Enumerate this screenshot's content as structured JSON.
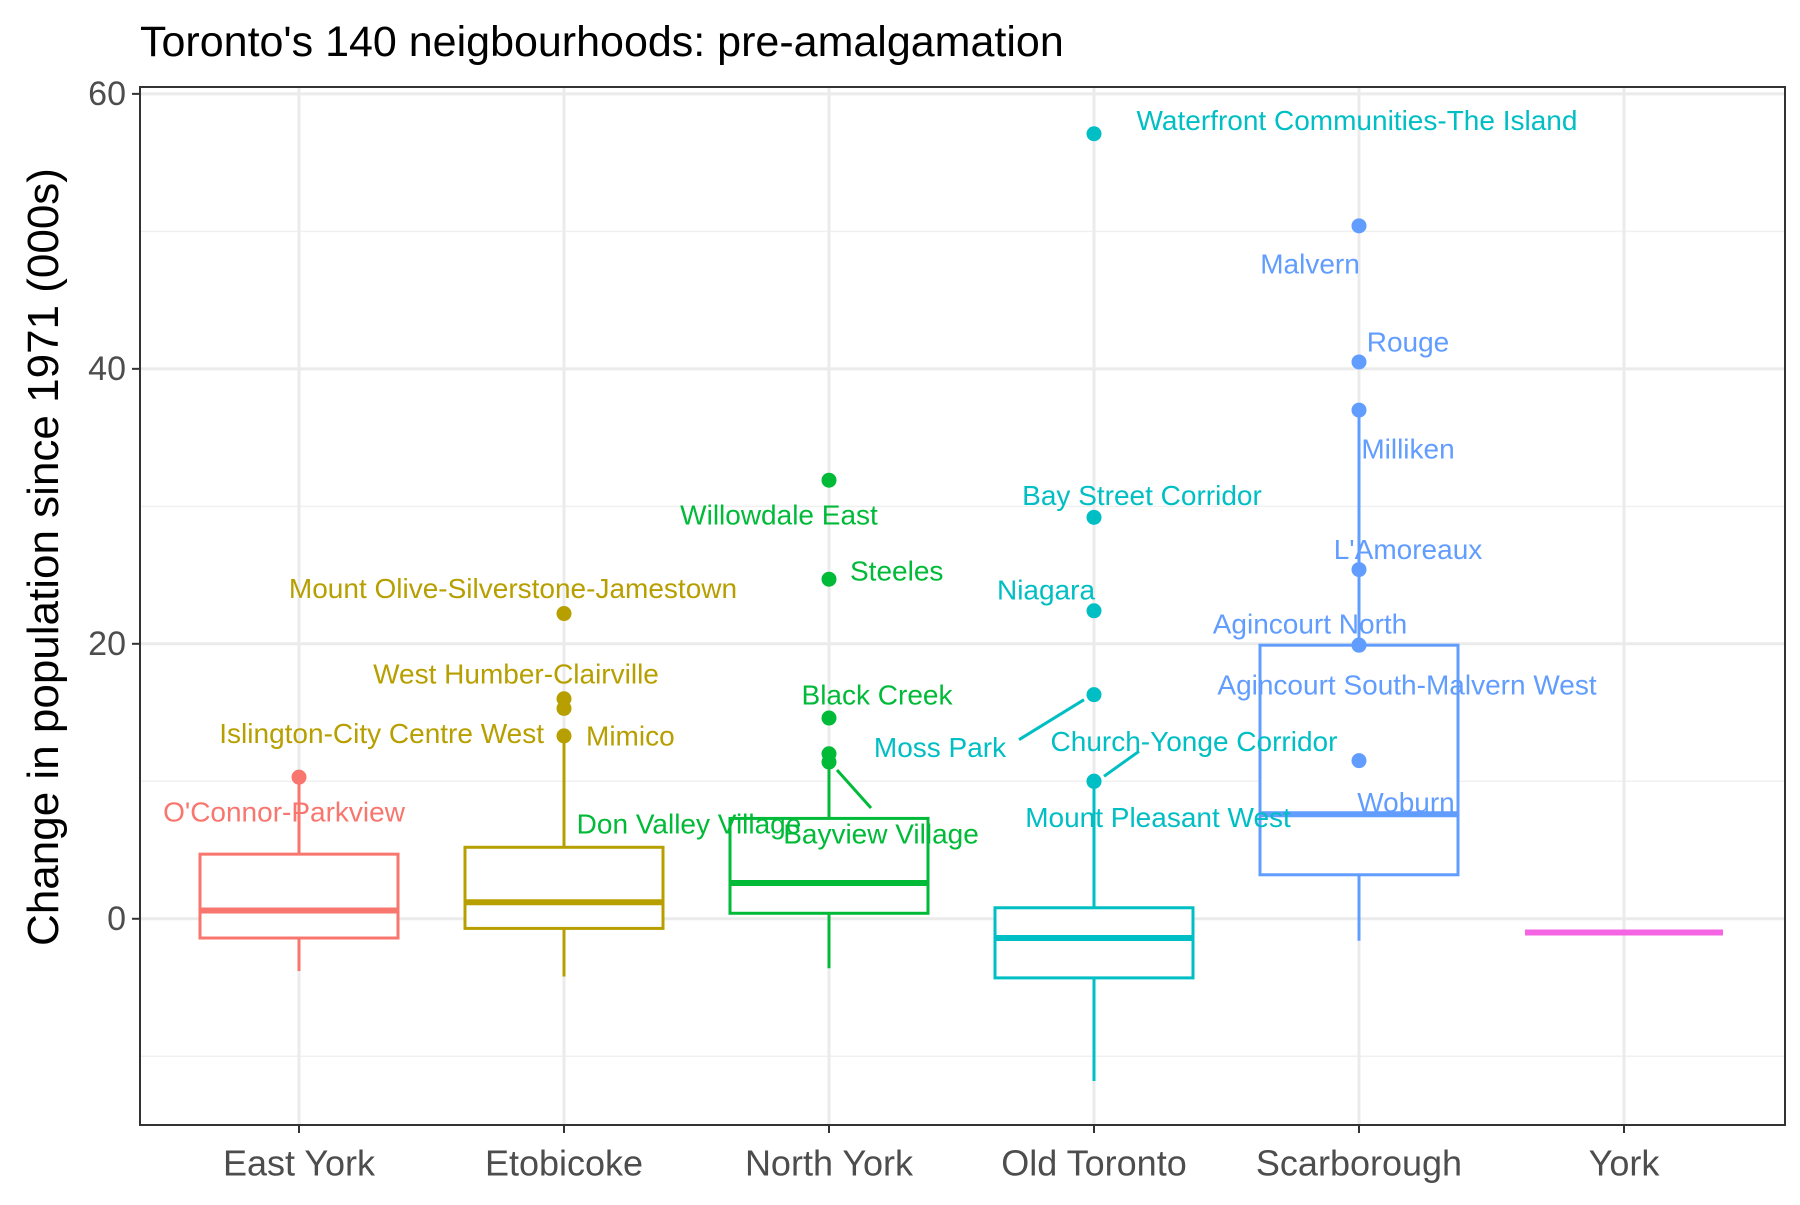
{
  "chart_data": {
    "type": "boxplot",
    "title": "Toronto's 140 neigbourhoods: pre-amalgamation",
    "xlabel": "",
    "ylabel": "Change in population since 1971 (000s)",
    "ylim": [
      -15,
      60.5
    ],
    "y_ticks": [
      0,
      20,
      40,
      60
    ],
    "y_tick_labels": [
      "0",
      "20",
      "40",
      "60"
    ],
    "grid": true,
    "legend": "none",
    "categories": [
      "East York",
      "Etobicoke",
      "North York",
      "Old Toronto",
      "Scarborough",
      "York"
    ],
    "colors": [
      "#F8766D",
      "#B79F00",
      "#00BA38",
      "#00BFC4",
      "#619CFF",
      "#F564E3"
    ],
    "boxes": [
      {
        "category": "East York",
        "whisker_low": -3.8,
        "q1": -1.4,
        "median": 0.6,
        "q3": 4.7,
        "whisker_high": 10.3
      },
      {
        "category": "Etobicoke",
        "whisker_low": -4.2,
        "q1": -0.7,
        "median": 1.2,
        "q3": 5.2,
        "whisker_high": 13.3
      },
      {
        "category": "North York",
        "whisker_low": -3.6,
        "q1": 0.4,
        "median": 2.6,
        "q3": 7.3,
        "whisker_high": 11.4
      },
      {
        "category": "Old Toronto",
        "whisker_low": -11.8,
        "q1": -4.3,
        "median": -1.4,
        "q3": 0.8,
        "whisker_high": 10.0
      },
      {
        "category": "Scarborough",
        "whisker_low": -1.6,
        "q1": 3.2,
        "median": 7.6,
        "q3": 19.9,
        "whisker_high": 37.0
      },
      {
        "category": "York",
        "whisker_low": -1.0,
        "q1": -1.0,
        "median": -1.0,
        "q3": -1.0,
        "whisker_high": -1.0
      }
    ],
    "outliers": [
      {
        "category": "East York",
        "y": 10.3,
        "label": "O'Connor-Parkview"
      },
      {
        "category": "Etobicoke",
        "y": 22.2,
        "label": "Mount Olive-Silverstone-Jamestown"
      },
      {
        "category": "Etobicoke",
        "y": 16.0,
        "label": "West Humber-Clairville"
      },
      {
        "category": "Etobicoke",
        "y": 15.3,
        "label": "Islington-City Centre West"
      },
      {
        "category": "Etobicoke",
        "y": 13.3,
        "label": "Mimico"
      },
      {
        "category": "North York",
        "y": 31.9,
        "label": "Willowdale East"
      },
      {
        "category": "North York",
        "y": 24.7,
        "label": "Steeles"
      },
      {
        "category": "North York",
        "y": 14.6,
        "label": "Black Creek"
      },
      {
        "category": "North York",
        "y": 12.0,
        "label": "Don Valley Village"
      },
      {
        "category": "North York",
        "y": 11.4,
        "label": "Bayview Village"
      },
      {
        "category": "Old Toronto",
        "y": 57.1,
        "label": "Waterfront Communities-The Island"
      },
      {
        "category": "Old Toronto",
        "y": 29.2,
        "label": "Bay Street Corridor"
      },
      {
        "category": "Old Toronto",
        "y": 22.4,
        "label": "Niagara"
      },
      {
        "category": "Old Toronto",
        "y": 16.3,
        "label": "Moss Park"
      },
      {
        "category": "Old Toronto",
        "y": 10.0,
        "label": "Church-Yonge Corridor"
      },
      {
        "category": "Old Toronto",
        "y": 10.0,
        "label": "Mount Pleasant West"
      },
      {
        "category": "Scarborough",
        "y": 50.4,
        "label": "Malvern"
      },
      {
        "category": "Scarborough",
        "y": 40.5,
        "label": "Rouge"
      },
      {
        "category": "Scarborough",
        "y": 37.0,
        "label": "Milliken"
      },
      {
        "category": "Scarborough",
        "y": 25.4,
        "label": "L'Amoreaux"
      },
      {
        "category": "Scarborough",
        "y": 19.9,
        "label": "Agincourt North"
      },
      {
        "category": "Scarborough",
        "y": 19.9,
        "label": "Agincourt South-Malvern West"
      },
      {
        "category": "Scarborough",
        "y": 11.5,
        "label": "Woburn"
      }
    ]
  }
}
